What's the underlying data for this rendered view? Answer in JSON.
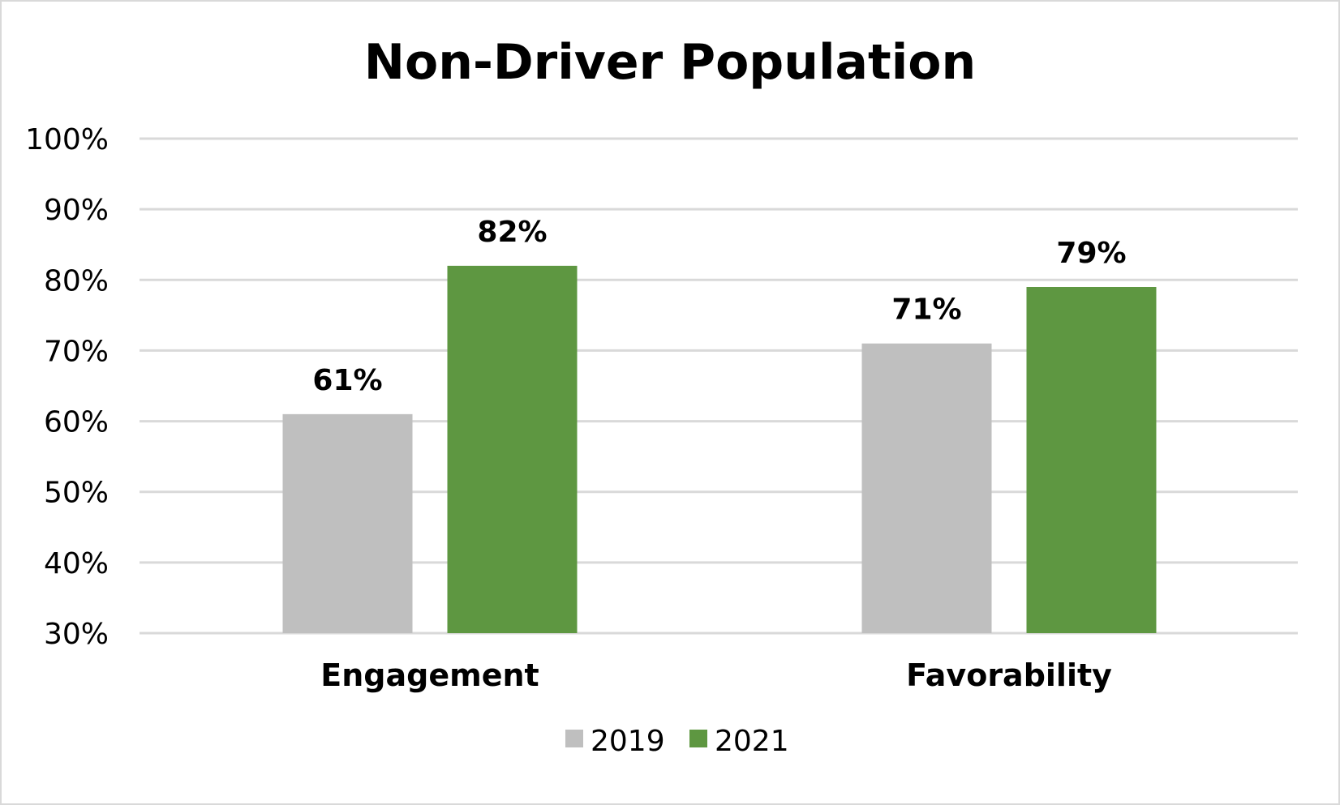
{
  "chart_data": {
    "type": "bar",
    "title": "Non-Driver Population",
    "categories": [
      "Engagement",
      "Favorability"
    ],
    "series": [
      {
        "name": "2019",
        "values": [
          61,
          71
        ],
        "labels": [
          "61%",
          "71%"
        ],
        "color": "#bfbfbf"
      },
      {
        "name": "2021",
        "values": [
          82,
          79
        ],
        "labels": [
          "82%",
          "79%"
        ],
        "color": "#5e9741"
      }
    ],
    "ylim": [
      30,
      100
    ],
    "yticks": [
      100,
      90,
      80,
      70,
      60,
      50,
      40,
      30
    ],
    "ytick_labels": [
      "100%",
      "90%",
      "80%",
      "70%",
      "60%",
      "50%",
      "40%",
      "30%"
    ],
    "xlabel": "",
    "ylabel": "",
    "grid": true,
    "legend_position": "bottom"
  }
}
